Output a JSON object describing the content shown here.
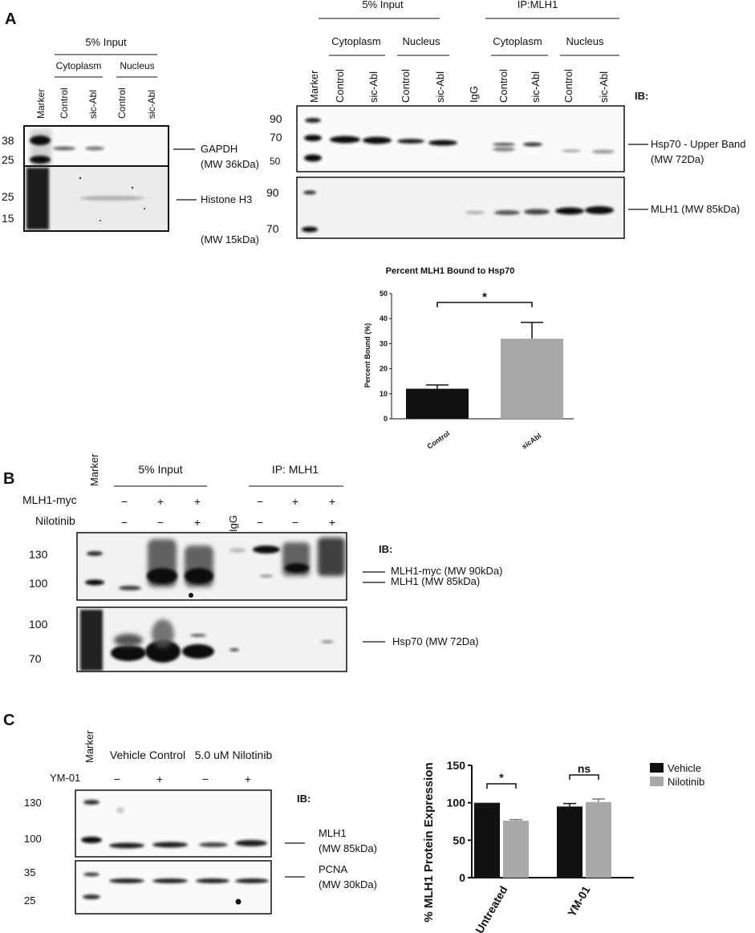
{
  "panel_letters": [
    "A",
    "B",
    "C"
  ],
  "panelA": {
    "left": {
      "group_label": "5% Input",
      "sub_labels": [
        "Cytoplasm",
        "Nucleus"
      ],
      "lane_labels": [
        "Marker",
        "Control",
        "sic-Abl",
        "Control",
        "sic-Abl"
      ],
      "gapdh": {
        "markers": [
          "38",
          "25"
        ],
        "band_label": "GAPDH",
        "mw": "(MW 36kDa)"
      },
      "histone": {
        "markers": [
          "25",
          "15"
        ],
        "band_label": "Histone H3",
        "mw": "(MW 15kDa)"
      }
    },
    "right": {
      "groups": [
        "5% Input",
        "IP:MLH1"
      ],
      "sub_labels": [
        "Cytoplasm",
        "Nucleus",
        "Cytoplasm",
        "Nucleus"
      ],
      "lane_labels": [
        "Marker",
        "Control",
        "sic-Abl",
        "Control",
        "sic-Abl",
        "IgG",
        "Control",
        "sic-Abl",
        "Control",
        "sic-Abl"
      ],
      "ib_label": "IB:",
      "hsp70": {
        "markers": [
          "90",
          "70",
          "50"
        ],
        "band_label": "Hsp70 - Upper Band",
        "mw": "(MW 72Da)"
      },
      "mlh1": {
        "markers": [
          "90",
          "70"
        ],
        "band_label": "MLH1 (MW 85kDa)"
      }
    }
  },
  "panelB": {
    "marker_label": "Marker",
    "groups": [
      "5% Input",
      "IP: MLH1"
    ],
    "row_labels": [
      "MLH1-myc",
      "Nilotinib"
    ],
    "igg": "IgG",
    "mlh1myc_signs": [
      "−",
      "+",
      "+",
      "−",
      "+",
      "+"
    ],
    "nilotinib_signs": [
      "−",
      "−",
      "+",
      "−",
      "−",
      "+"
    ],
    "ib_label": "IB:",
    "blot1": {
      "markers": [
        "130",
        "100"
      ],
      "bands": [
        "MLH1-myc (MW  90kDa)",
        "MLH1 (MW 85kDa)"
      ]
    },
    "blot2": {
      "markers": [
        "100",
        "70"
      ],
      "band_label": "Hsp70 (MW 72Da)"
    }
  },
  "panelC": {
    "marker_label": "Marker",
    "groups": [
      "Vehicle Control",
      "5.0 uM Nilotinib"
    ],
    "row_label": "YM-01",
    "signs": [
      "−",
      "+",
      "−",
      "+"
    ],
    "ib_label": "IB:",
    "blot1": {
      "markers": [
        "130",
        "100"
      ],
      "band_label": "MLH1",
      "mw": "(MW 85kDa)"
    },
    "blot2": {
      "markers": [
        "35",
        "25"
      ],
      "band_label": "PCNA",
      "mw": "(MW 30kDa)"
    }
  },
  "chart_data": [
    {
      "type": "bar",
      "title": "Percent MLH1 Bound to Hsp70",
      "ylabel": "Percent Bound (%)",
      "xlabel": "",
      "categories": [
        "Control",
        "sicAbl"
      ],
      "values": [
        12,
        32
      ],
      "errors": [
        1.5,
        6.5
      ],
      "ylim": [
        0,
        50
      ],
      "yticks": [
        0,
        10,
        20,
        30,
        40,
        50
      ],
      "colors": [
        "#111111",
        "#a9a9a9"
      ],
      "significance": "*"
    },
    {
      "type": "bar",
      "ylabel": "% MLH1 Protein Expression",
      "xlabel": "",
      "categories": [
        "Untreated",
        "YM-01"
      ],
      "series": [
        {
          "name": "Vehicle",
          "values": [
            100,
            95
          ],
          "errors": [
            0,
            4
          ],
          "color": "#111111"
        },
        {
          "name": "Nilotinib",
          "values": [
            76,
            101
          ],
          "errors": [
            1.5,
            4
          ],
          "color": "#a9a9a9"
        }
      ],
      "ylim": [
        0,
        150
      ],
      "yticks": [
        0,
        50,
        100,
        150
      ],
      "significance": [
        "*",
        "ns"
      ],
      "legend": "top-right"
    }
  ]
}
